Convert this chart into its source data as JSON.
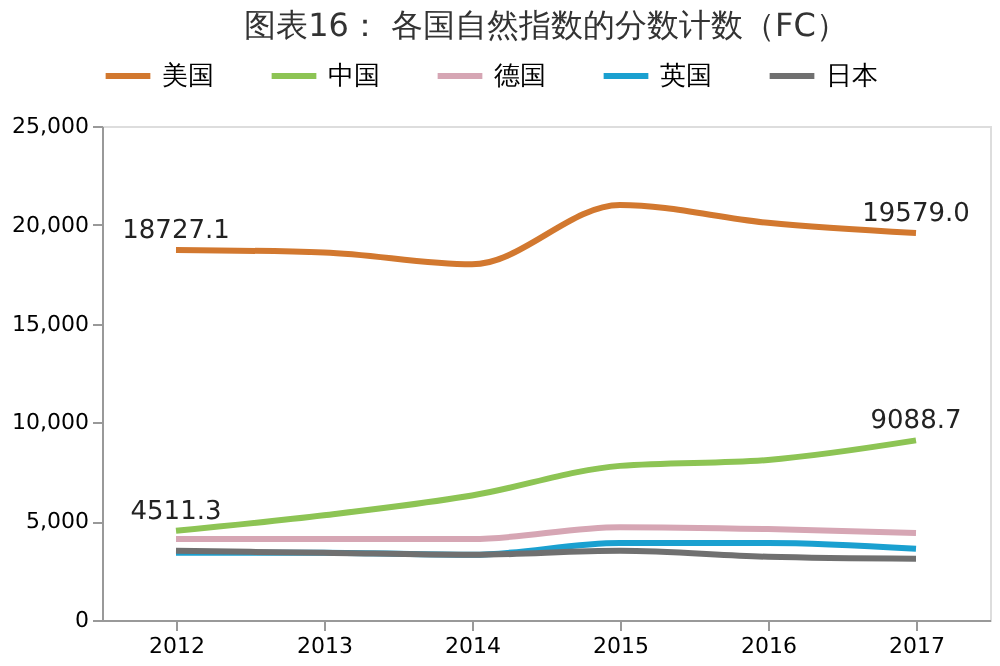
{
  "chart_data": {
    "type": "line",
    "title": "图表16： 各国自然指数的分数计数（FC）",
    "categories": [
      "2012",
      "2013",
      "2014",
      "2015",
      "2016",
      "2017"
    ],
    "series": [
      {
        "name": "美国",
        "color": "#d2782f",
        "values": [
          18727.1,
          18600,
          18000,
          21000,
          20100,
          19579.0
        ],
        "value_labels": [
          "18727.1",
          null,
          null,
          null,
          null,
          "19579.0"
        ]
      },
      {
        "name": "中国",
        "color": "#8dc454",
        "values": [
          4511.3,
          5300,
          6300,
          7800,
          8100,
          9088.7
        ],
        "value_labels": [
          "4511.3",
          null,
          null,
          null,
          null,
          "9088.7"
        ]
      },
      {
        "name": "德国",
        "color": "#d6a6b4",
        "values": [
          4100,
          4100,
          4100,
          4700,
          4600,
          4400
        ]
      },
      {
        "name": "英国",
        "color": "#1aa0d0",
        "values": [
          3400,
          3400,
          3300,
          3900,
          3900,
          3600
        ]
      },
      {
        "name": "日本",
        "color": "#707070",
        "values": [
          3500,
          3400,
          3300,
          3500,
          3200,
          3100
        ]
      }
    ],
    "ylim": [
      0,
      25000
    ],
    "yticks": [
      0,
      {
        "value": 5000,
        "label": "5,000"
      },
      {
        "value": 10000,
        "label": "10,000"
      },
      {
        "value": 15000,
        "label": "15,000"
      },
      {
        "value": 20000,
        "label": "20,000"
      },
      {
        "value": 25000,
        "label": "25,000"
      }
    ],
    "grid": false,
    "legend": "top",
    "marker": "none",
    "line_style": "solid"
  }
}
